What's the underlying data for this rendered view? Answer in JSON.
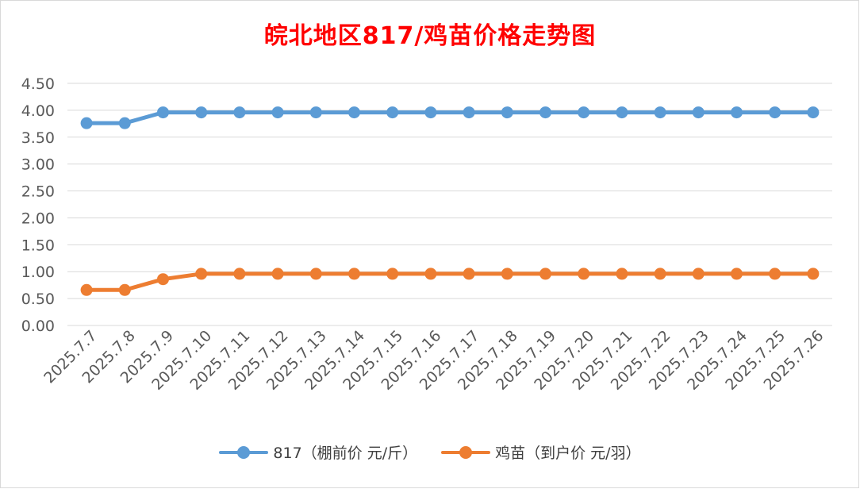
{
  "chart_data": {
    "type": "line",
    "title": "皖北地区817/鸡苗价格走势图",
    "categories": [
      "2025.7.7",
      "2025.7.8",
      "2025.7.9",
      "2025.7.10",
      "2025.7.11",
      "2025.7.12",
      "2025.7.13",
      "2025.7.14",
      "2025.7.15",
      "2025.7.16",
      "2025.7.17",
      "2025.7.18",
      "2025.7.19",
      "2025.7.20",
      "2025.7.21",
      "2025.7.22",
      "2025.7.23",
      "2025.7.24",
      "2025.7.25",
      "2025.7.26"
    ],
    "yticks": [
      "0.00",
      "0.50",
      "1.00",
      "1.50",
      "2.00",
      "2.50",
      "3.00",
      "3.50",
      "4.00",
      "4.50"
    ],
    "ylim": [
      0,
      4.5
    ],
    "grid": true,
    "legend_position": "bottom",
    "series": [
      {
        "name": "817（棚前价 元/斤）",
        "color": "#5b9bd5",
        "values": [
          3.76,
          3.76,
          3.96,
          3.96,
          3.96,
          3.96,
          3.96,
          3.96,
          3.96,
          3.96,
          3.96,
          3.96,
          3.96,
          3.96,
          3.96,
          3.96,
          3.96,
          3.96,
          3.96,
          3.96
        ]
      },
      {
        "name": "鸡苗（到户价 元/羽）",
        "color": "#ed7d31",
        "values": [
          0.66,
          0.66,
          0.86,
          0.96,
          0.96,
          0.96,
          0.96,
          0.96,
          0.96,
          0.96,
          0.96,
          0.96,
          0.96,
          0.96,
          0.96,
          0.96,
          0.96,
          0.96,
          0.96,
          0.96
        ]
      }
    ]
  }
}
